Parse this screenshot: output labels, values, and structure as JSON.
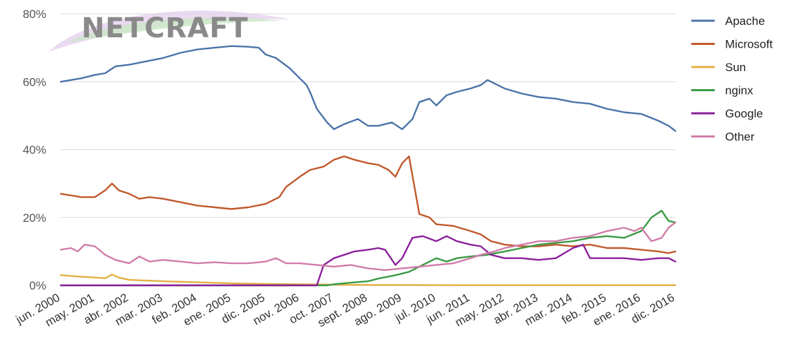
{
  "chart_data": {
    "type": "line",
    "title": "",
    "xlabel": "",
    "ylabel": "",
    "ylim": [
      0,
      80
    ],
    "yticks": [
      "0%",
      "20%",
      "40%",
      "60%",
      "80%"
    ],
    "grid": true,
    "legend_position": "right",
    "logo_text": "NETCRAFT",
    "categories": [
      "jun. 2000",
      "may. 2001",
      "abr. 2002",
      "mar. 2003",
      "feb. 2004",
      "ene. 2005",
      "dic. 2005",
      "nov. 2006",
      "oct. 2007",
      "sept. 2008",
      "ago. 2009",
      "jul. 2010",
      "jun. 2011",
      "may. 2012",
      "abr. 2013",
      "mar. 2014",
      "feb. 2015",
      "ene. 2016",
      "dic. 2016"
    ],
    "series": [
      {
        "name": "Apache",
        "color": "#4a73a8",
        "points": [
          [
            0,
            60
          ],
          [
            0.3,
            60.5
          ],
          [
            0.6,
            61
          ],
          [
            1,
            62
          ],
          [
            1.3,
            62.5
          ],
          [
            1.6,
            64.5
          ],
          [
            2,
            65
          ],
          [
            2.5,
            66
          ],
          [
            3,
            67
          ],
          [
            3.5,
            68.5
          ],
          [
            4,
            69.5
          ],
          [
            4.5,
            70
          ],
          [
            5,
            70.5
          ],
          [
            5.5,
            70.3
          ],
          [
            5.8,
            70
          ],
          [
            6,
            68
          ],
          [
            6.3,
            67
          ],
          [
            6.7,
            64
          ],
          [
            7,
            61
          ],
          [
            7.2,
            59
          ],
          [
            7.3,
            57
          ],
          [
            7.5,
            52
          ],
          [
            7.8,
            48
          ],
          [
            8,
            46
          ],
          [
            8.3,
            47.5
          ],
          [
            8.7,
            49
          ],
          [
            9,
            47
          ],
          [
            9.3,
            47
          ],
          [
            9.7,
            48
          ],
          [
            10,
            46
          ],
          [
            10.3,
            49
          ],
          [
            10.5,
            54
          ],
          [
            10.8,
            55
          ],
          [
            11,
            53
          ],
          [
            11.3,
            56
          ],
          [
            11.6,
            57
          ],
          [
            12,
            58
          ],
          [
            12.3,
            59
          ],
          [
            12.5,
            60.5
          ],
          [
            12.8,
            59
          ],
          [
            13,
            58
          ],
          [
            13.5,
            56.5
          ],
          [
            14,
            55.5
          ],
          [
            14.5,
            55
          ],
          [
            15,
            54
          ],
          [
            15.5,
            53.5
          ],
          [
            16,
            52
          ],
          [
            16.5,
            51
          ],
          [
            17,
            50.5
          ],
          [
            17.5,
            48.5
          ],
          [
            17.8,
            47
          ],
          [
            18,
            45.5
          ]
        ]
      },
      {
        "name": "Microsoft",
        "color": "#c1582c",
        "points": [
          [
            0,
            27
          ],
          [
            0.3,
            26.5
          ],
          [
            0.6,
            26
          ],
          [
            1,
            26
          ],
          [
            1.3,
            28
          ],
          [
            1.5,
            30
          ],
          [
            1.7,
            28
          ],
          [
            2,
            27
          ],
          [
            2.3,
            25.5
          ],
          [
            2.6,
            26
          ],
          [
            3,
            25.5
          ],
          [
            3.5,
            24.5
          ],
          [
            4,
            23.5
          ],
          [
            4.5,
            23
          ],
          [
            5,
            22.5
          ],
          [
            5.5,
            23
          ],
          [
            6,
            24
          ],
          [
            6.4,
            26
          ],
          [
            6.6,
            29
          ],
          [
            7,
            32
          ],
          [
            7.3,
            34
          ],
          [
            7.7,
            35
          ],
          [
            8,
            37
          ],
          [
            8.3,
            38
          ],
          [
            8.6,
            37
          ],
          [
            9,
            36
          ],
          [
            9.3,
            35.5
          ],
          [
            9.6,
            34
          ],
          [
            9.8,
            32
          ],
          [
            10,
            36
          ],
          [
            10.2,
            38
          ],
          [
            10.5,
            21
          ],
          [
            10.8,
            20
          ],
          [
            11,
            18
          ],
          [
            11.5,
            17.5
          ],
          [
            12,
            16
          ],
          [
            12.3,
            15
          ],
          [
            12.6,
            13
          ],
          [
            13,
            12
          ],
          [
            13.5,
            11.5
          ],
          [
            14,
            11.5
          ],
          [
            14.5,
            12
          ],
          [
            15,
            11.5
          ],
          [
            15.5,
            12
          ],
          [
            16,
            11
          ],
          [
            16.5,
            11
          ],
          [
            17,
            10.5
          ],
          [
            17.5,
            10
          ],
          [
            17.8,
            9.5
          ],
          [
            18,
            10
          ]
        ]
      },
      {
        "name": "Sun",
        "color": "#e3b043",
        "points": [
          [
            0,
            3
          ],
          [
            0.5,
            2.6
          ],
          [
            1,
            2.3
          ],
          [
            1.3,
            2.1
          ],
          [
            1.5,
            3.2
          ],
          [
            1.7,
            2.3
          ],
          [
            2,
            1.6
          ],
          [
            2.5,
            1.4
          ],
          [
            3,
            1.2
          ],
          [
            4,
            0.9
          ],
          [
            5,
            0.6
          ],
          [
            6,
            0.4
          ],
          [
            7,
            0.3
          ],
          [
            8,
            0.2
          ],
          [
            9,
            0.1
          ],
          [
            10,
            0.1
          ],
          [
            12,
            0.05
          ],
          [
            14,
            0.05
          ],
          [
            18,
            0.05
          ]
        ]
      },
      {
        "name": "nginx",
        "color": "#3a9a44",
        "points": [
          [
            0,
            0
          ],
          [
            7.8,
            0
          ],
          [
            8,
            0.3
          ],
          [
            8.5,
            0.8
          ],
          [
            9,
            1.2
          ],
          [
            9.3,
            2
          ],
          [
            9.8,
            3
          ],
          [
            10.2,
            4
          ],
          [
            10.6,
            6
          ],
          [
            11,
            8
          ],
          [
            11.3,
            7
          ],
          [
            11.6,
            8
          ],
          [
            12,
            8.5
          ],
          [
            12.5,
            9
          ],
          [
            13,
            10
          ],
          [
            13.5,
            11
          ],
          [
            14,
            12
          ],
          [
            14.5,
            12.5
          ],
          [
            15,
            13
          ],
          [
            15.5,
            14
          ],
          [
            16,
            14.5
          ],
          [
            16.5,
            14
          ],
          [
            17,
            16
          ],
          [
            17.3,
            20
          ],
          [
            17.6,
            22
          ],
          [
            17.8,
            19
          ],
          [
            18,
            18.5
          ]
        ]
      },
      {
        "name": "Google",
        "color": "#8a1f9a",
        "points": [
          [
            0,
            0
          ],
          [
            7.5,
            0
          ],
          [
            7.7,
            6
          ],
          [
            8,
            8
          ],
          [
            8.3,
            9
          ],
          [
            8.6,
            10
          ],
          [
            9,
            10.5
          ],
          [
            9.3,
            11
          ],
          [
            9.5,
            10.5
          ],
          [
            9.8,
            6
          ],
          [
            10,
            8
          ],
          [
            10.3,
            14
          ],
          [
            10.6,
            14.5
          ],
          [
            11,
            13
          ],
          [
            11.3,
            14.5
          ],
          [
            11.6,
            13
          ],
          [
            12,
            12
          ],
          [
            12.3,
            11.5
          ],
          [
            12.6,
            9
          ],
          [
            13,
            8
          ],
          [
            13.5,
            8
          ],
          [
            14,
            7.5
          ],
          [
            14.5,
            8
          ],
          [
            15,
            11
          ],
          [
            15.3,
            12
          ],
          [
            15.5,
            8
          ],
          [
            16,
            8
          ],
          [
            16.5,
            8
          ],
          [
            17,
            7.5
          ],
          [
            17.5,
            8
          ],
          [
            17.8,
            8
          ],
          [
            18,
            7
          ]
        ]
      },
      {
        "name": "Other",
        "color": "#d07ca8",
        "points": [
          [
            0,
            10.5
          ],
          [
            0.3,
            11
          ],
          [
            0.5,
            10
          ],
          [
            0.7,
            12
          ],
          [
            1,
            11.5
          ],
          [
            1.3,
            9
          ],
          [
            1.6,
            7.5
          ],
          [
            2,
            6.5
          ],
          [
            2.3,
            8.5
          ],
          [
            2.6,
            7
          ],
          [
            3,
            7.5
          ],
          [
            3.5,
            7
          ],
          [
            4,
            6.5
          ],
          [
            4.5,
            6.8
          ],
          [
            5,
            6.5
          ],
          [
            5.5,
            6.5
          ],
          [
            6,
            7
          ],
          [
            6.3,
            8
          ],
          [
            6.6,
            6.5
          ],
          [
            7,
            6.5
          ],
          [
            7.5,
            6
          ],
          [
            8,
            5.5
          ],
          [
            8.5,
            6
          ],
          [
            9,
            5
          ],
          [
            9.5,
            4.5
          ],
          [
            10,
            5
          ],
          [
            10.5,
            5.5
          ],
          [
            11,
            6
          ],
          [
            11.5,
            6.5
          ],
          [
            12,
            8
          ],
          [
            12.3,
            9
          ],
          [
            12.7,
            10
          ],
          [
            13,
            11
          ],
          [
            13.5,
            12
          ],
          [
            14,
            13
          ],
          [
            14.5,
            13
          ],
          [
            15,
            14
          ],
          [
            15.5,
            14.5
          ],
          [
            16,
            16
          ],
          [
            16.5,
            17
          ],
          [
            16.8,
            16
          ],
          [
            17,
            17
          ],
          [
            17.3,
            13
          ],
          [
            17.6,
            14
          ],
          [
            17.8,
            17
          ],
          [
            18,
            18.5
          ]
        ]
      }
    ]
  }
}
